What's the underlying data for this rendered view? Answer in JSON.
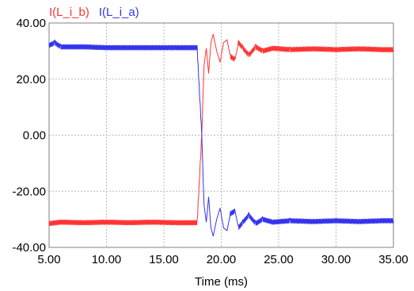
{
  "chart_data": {
    "type": "line",
    "xlabel": "Time (ms)",
    "ylabel": "",
    "xlim": [
      5,
      35
    ],
    "ylim": [
      -40,
      40
    ],
    "x_ticks": [
      "5.00",
      "10.00",
      "15.00",
      "20.00",
      "25.00",
      "30.00",
      "35.00"
    ],
    "y_ticks": [
      "40.00",
      "20.00",
      "0.00",
      "-20.00",
      "-40.00"
    ],
    "grid": true,
    "legend_position": "top-left",
    "series": [
      {
        "name": "I(L_i_b)",
        "color": "#ff3333",
        "points": [
          [
            5,
            -31.5
          ],
          [
            6,
            -31
          ],
          [
            8,
            -31.2
          ],
          [
            10,
            -31
          ],
          [
            12,
            -31.2
          ],
          [
            14,
            -31
          ],
          [
            16,
            -31.2
          ],
          [
            17.9,
            -31.2
          ],
          [
            18.3,
            0
          ],
          [
            18.5,
            25
          ],
          [
            18.7,
            31
          ],
          [
            18.9,
            22
          ],
          [
            19.1,
            33
          ],
          [
            19.3,
            36
          ],
          [
            19.6,
            30
          ],
          [
            19.9,
            26
          ],
          [
            20.2,
            33
          ],
          [
            20.5,
            34
          ],
          [
            20.8,
            28
          ],
          [
            21.2,
            27
          ],
          [
            21.5,
            33
          ],
          [
            21.9,
            31
          ],
          [
            22.4,
            28.5
          ],
          [
            23,
            31.5
          ],
          [
            23.6,
            30
          ],
          [
            24.5,
            31
          ],
          [
            26,
            30.5
          ],
          [
            28,
            30.8
          ],
          [
            30,
            30.5
          ],
          [
            32,
            30.8
          ],
          [
            34,
            30.5
          ],
          [
            35,
            30.5
          ]
        ],
        "noise": 0.9
      },
      {
        "name": "I(L_i_a)",
        "color": "#3333ee",
        "points": [
          [
            5,
            32
          ],
          [
            5.5,
            33
          ],
          [
            6,
            31.5
          ],
          [
            8,
            31.5
          ],
          [
            10,
            31.2
          ],
          [
            12,
            31.2
          ],
          [
            14,
            31.2
          ],
          [
            16,
            31.2
          ],
          [
            17.9,
            31.2
          ],
          [
            18.3,
            0
          ],
          [
            18.5,
            -25
          ],
          [
            18.7,
            -31
          ],
          [
            18.9,
            -22
          ],
          [
            19.1,
            -33
          ],
          [
            19.3,
            -36
          ],
          [
            19.6,
            -30
          ],
          [
            19.9,
            -26
          ],
          [
            20.2,
            -33
          ],
          [
            20.5,
            -34
          ],
          [
            20.8,
            -28
          ],
          [
            21.2,
            -27
          ],
          [
            21.5,
            -33
          ],
          [
            21.9,
            -31
          ],
          [
            22.4,
            -28.5
          ],
          [
            23,
            -31.5
          ],
          [
            23.6,
            -30
          ],
          [
            24.5,
            -31
          ],
          [
            26,
            -30.5
          ],
          [
            28,
            -30.8
          ],
          [
            30,
            -30.5
          ],
          [
            32,
            -30.8
          ],
          [
            34,
            -30.5
          ],
          [
            35,
            -30.5
          ]
        ],
        "noise": 0.9
      }
    ]
  }
}
